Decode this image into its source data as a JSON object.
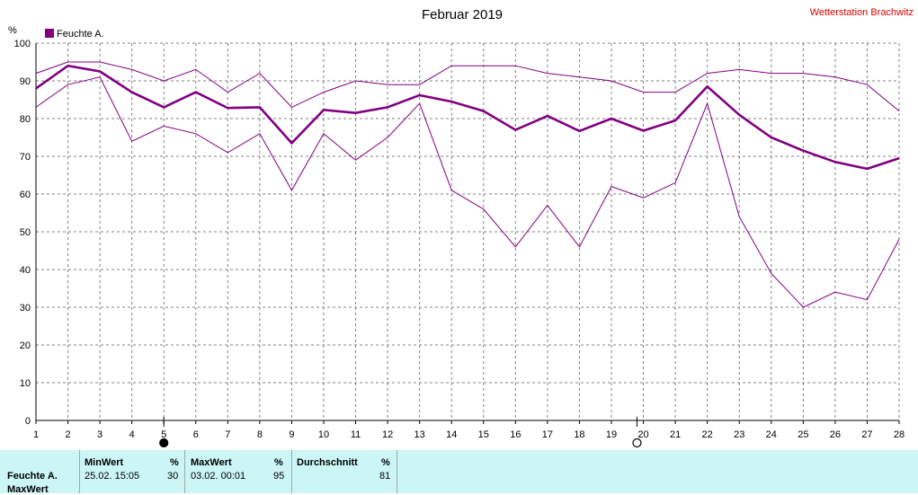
{
  "header": {
    "title": "Februar 2019",
    "station": "Wetterstation Brachwitz"
  },
  "colors": {
    "series": "#800080",
    "grid": "#808080",
    "station": "#e00000",
    "panel": "#ccf6f6"
  },
  "chart_data": {
    "type": "line",
    "title": "Februar 2019",
    "ylabel": "%",
    "xlabel": "",
    "ylim": [
      0,
      100
    ],
    "yticks": [
      0,
      10,
      20,
      30,
      40,
      50,
      60,
      70,
      80,
      90,
      100
    ],
    "xlim": [
      1,
      28
    ],
    "x": [
      1,
      2,
      3,
      4,
      5,
      6,
      7,
      8,
      9,
      10,
      11,
      12,
      13,
      14,
      15,
      16,
      17,
      18,
      19,
      20,
      21,
      22,
      23,
      24,
      25,
      26,
      27,
      28
    ],
    "legend": {
      "position": "top-left",
      "label": "Feuchte A."
    },
    "grid": true,
    "series": [
      {
        "name": "Feuchte A.",
        "role": "avg",
        "values": [
          88,
          94,
          92.5,
          87,
          83,
          87,
          82.8,
          83,
          73.5,
          82.3,
          81.5,
          83,
          86.2,
          84.5,
          82,
          77,
          80.7,
          76.7,
          80,
          76.8,
          79.5,
          88.5,
          81,
          75,
          71.5,
          68.5,
          66.7,
          69.5
        ]
      },
      {
        "role": "max",
        "values": [
          92,
          95,
          95,
          93,
          90,
          93,
          87,
          92,
          83,
          87,
          90,
          89,
          89,
          94,
          94,
          94,
          92,
          91,
          90,
          87,
          87,
          92,
          93,
          92,
          92,
          91,
          89,
          82
        ]
      },
      {
        "role": "min",
        "values": [
          83,
          89,
          91,
          74,
          78,
          76,
          71,
          76,
          61,
          76,
          69,
          75,
          84,
          61,
          56,
          46,
          57,
          46,
          62,
          59,
          63,
          84,
          54,
          39,
          30,
          34,
          32,
          48
        ]
      }
    ],
    "moon_phases": [
      {
        "day": 5,
        "phase": "new"
      },
      {
        "day": 19.8,
        "phase": "full"
      }
    ]
  },
  "stats": {
    "row_label": "Feuchte A.",
    "row_label2": "MaxWert",
    "min": {
      "header": "MinWert",
      "unit": "%",
      "time": "25.02.  15:05",
      "value": "30"
    },
    "max": {
      "header": "MaxWert",
      "unit": "%",
      "time": "03.02.  00:01",
      "value": "95"
    },
    "avg": {
      "header": "Durchschnitt",
      "unit": "%",
      "value": "81"
    }
  }
}
